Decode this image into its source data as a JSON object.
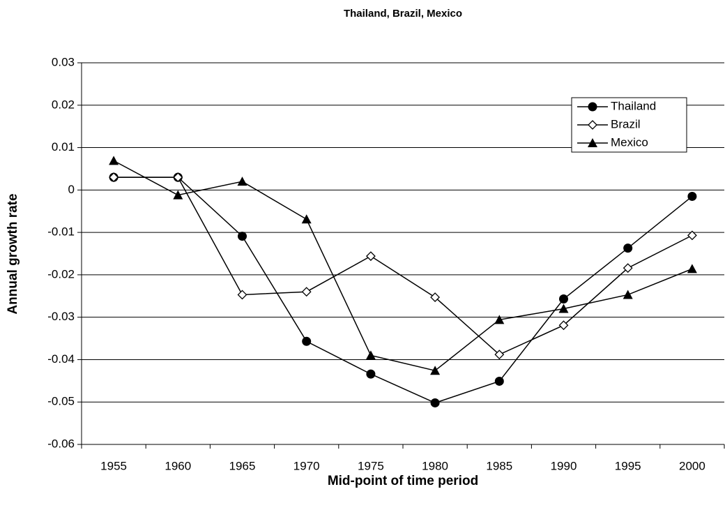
{
  "chart_data": {
    "type": "line",
    "title": "Thailand, Brazil, Mexico",
    "xlabel": "Mid-point of time period",
    "ylabel": "Annual growth rate",
    "categories": [
      "1955",
      "1960",
      "1965",
      "1970",
      "1975",
      "1980",
      "1985",
      "1990",
      "1995",
      "2000"
    ],
    "series": [
      {
        "name": "Thailand",
        "color": "#000000",
        "marker": "circle",
        "values": [
          0.003,
          0.003,
          -0.0109,
          -0.0357,
          -0.0434,
          -0.0502,
          -0.0451,
          -0.0257,
          -0.0137,
          -0.0015
        ]
      },
      {
        "name": "Brazil",
        "color": "#000000",
        "marker": "diamond",
        "values": [
          0.003,
          0.003,
          -0.0247,
          -0.024,
          -0.0156,
          -0.0253,
          -0.0388,
          -0.0319,
          -0.0184,
          -0.0107
        ]
      },
      {
        "name": "Mexico",
        "color": "#000000",
        "marker": "triangle",
        "values": [
          0.0069,
          -0.0012,
          0.002,
          -0.0069,
          -0.039,
          -0.0426,
          -0.0306,
          -0.028,
          -0.0247,
          -0.0186
        ]
      }
    ],
    "ylim": [
      -0.06,
      0.03
    ],
    "yticks": [
      0.03,
      0.02,
      0.01,
      0,
      -0.01,
      -0.02,
      -0.03,
      -0.04,
      -0.05,
      -0.06
    ],
    "grid": true,
    "legend": "upper right"
  }
}
